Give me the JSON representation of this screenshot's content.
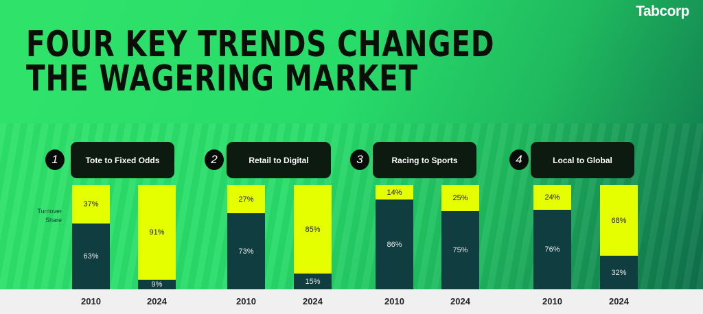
{
  "header": {
    "logo": "Tabcorp",
    "title_line1": "FOUR KEY TRENDS CHANGED",
    "title_line2": "THE WAGERING MARKET"
  },
  "chart_data": {
    "type": "bar",
    "stacked": true,
    "ylabel": "Turnover Share",
    "categories": [
      "2010",
      "2024"
    ],
    "colors": {
      "new": "#e6ff00",
      "old": "#0f3d40"
    },
    "groups": [
      {
        "number": "1",
        "title": "Tote to Fixed Odds",
        "top": [
          37,
          91
        ],
        "bottom": [
          63,
          9
        ]
      },
      {
        "number": "2",
        "title": "Retail to Digital",
        "top": [
          27,
          85
        ],
        "bottom": [
          73,
          15
        ]
      },
      {
        "number": "3",
        "title": "Racing to Sports",
        "top": [
          14,
          25
        ],
        "bottom": [
          86,
          75
        ]
      },
      {
        "number": "4",
        "title": "Local to Global",
        "top": [
          24,
          68
        ],
        "bottom": [
          76,
          32
        ]
      }
    ],
    "ylim": [
      0,
      100
    ]
  }
}
